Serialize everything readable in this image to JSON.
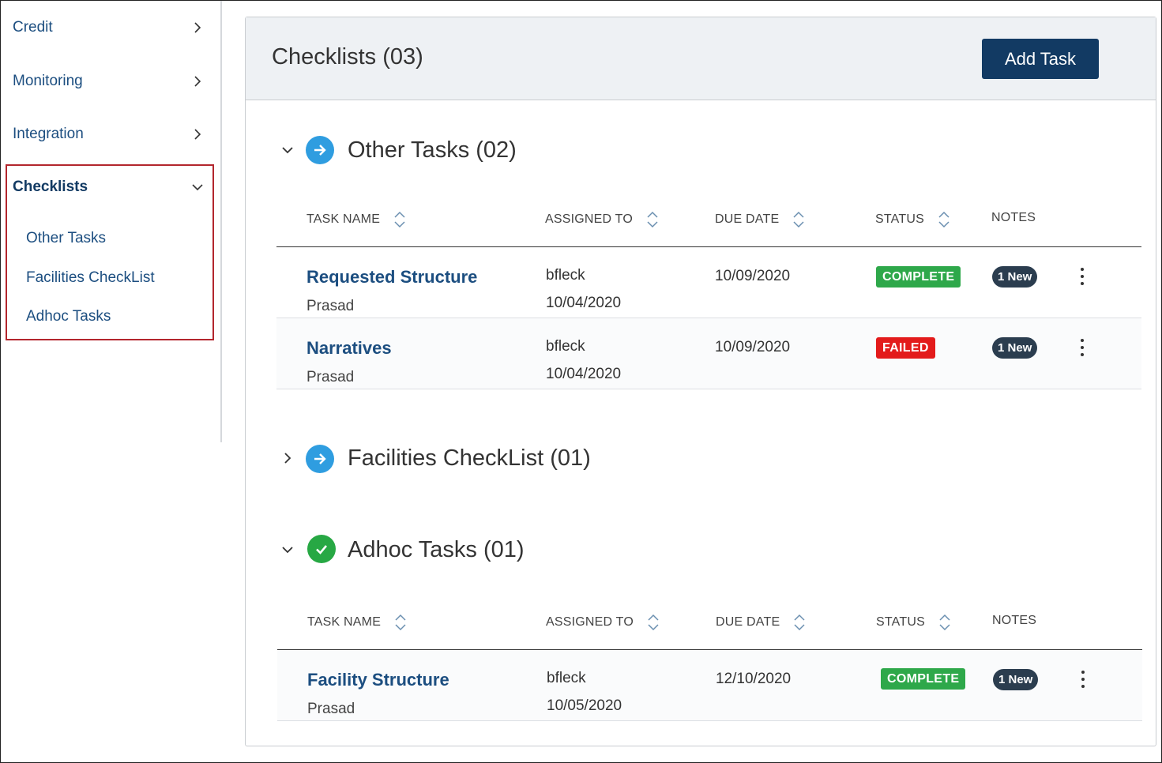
{
  "sidebar": {
    "items": [
      {
        "label": "Credit"
      },
      {
        "label": "Monitoring"
      },
      {
        "label": "Integration"
      },
      {
        "label": "Checklists"
      }
    ],
    "checklist_subitems": [
      {
        "label": "Other Tasks"
      },
      {
        "label": "Facilities CheckList"
      },
      {
        "label": "Adhoc Tasks"
      }
    ],
    "highlight_color": "#b3262d"
  },
  "panel": {
    "title": "Checklists (03)",
    "add_button": "Add Task"
  },
  "columns": {
    "task_name": "TASK NAME",
    "assigned_to": "ASSIGNED TO",
    "due_date": "DUE DATE",
    "status": "STATUS",
    "notes": "NOTES"
  },
  "sections": [
    {
      "title": "Other Tasks (02)",
      "expanded": true,
      "icon": "arrow-right-circle-icon",
      "rows": [
        {
          "name": "Requested Structure",
          "owner": "Prasad",
          "assignee": "bfleck",
          "assigned_date": "10/04/2020",
          "due": "10/09/2020",
          "status": "COMPLETE",
          "notes": "1 New"
        },
        {
          "name": "Narratives",
          "owner": "Prasad",
          "assignee": "bfleck",
          "assigned_date": "10/04/2020",
          "due": "10/09/2020",
          "status": "FAILED",
          "notes": "1 New"
        }
      ]
    },
    {
      "title": "Facilities CheckList (01)",
      "expanded": false,
      "icon": "arrow-right-circle-icon",
      "rows": []
    },
    {
      "title": "Adhoc Tasks (01)",
      "expanded": true,
      "icon": "check-circle-icon",
      "rows": [
        {
          "name": "Facility Structure",
          "owner": "Prasad",
          "assignee": "bfleck",
          "assigned_date": "10/05/2020",
          "due": "12/10/2020",
          "status": "COMPLETE",
          "notes": "1 New"
        }
      ]
    }
  ],
  "colors": {
    "primary": "#123a63",
    "link": "#1c4e80",
    "complete": "#2ea84a",
    "failed": "#e31b1b",
    "icon_blue": "#2f9de0",
    "icon_green": "#27a844"
  }
}
